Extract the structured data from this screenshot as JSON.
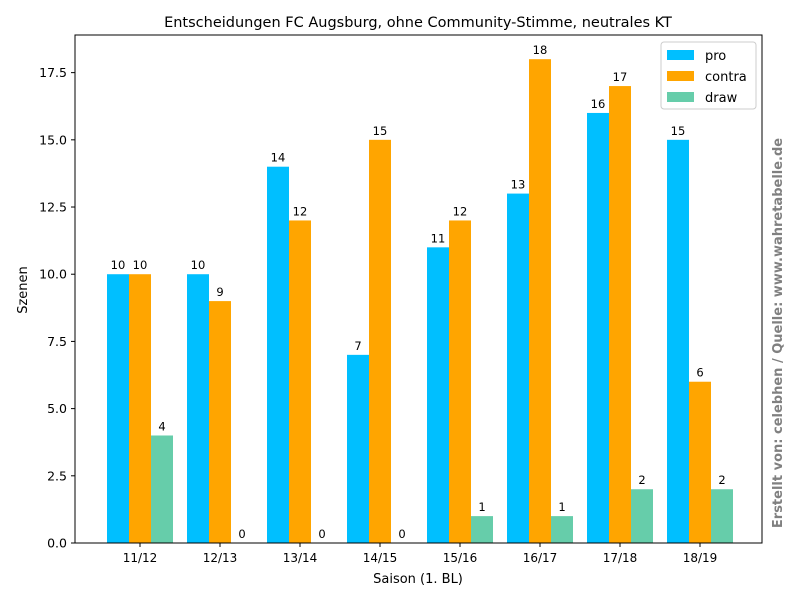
{
  "chart_data": {
    "type": "bar",
    "title": "Entscheidungen FC Augsburg, ohne Community-Stimme, neutrales KT",
    "xlabel": "Saison (1. BL)",
    "ylabel": "Szenen",
    "ylim": [
      0,
      18.9
    ],
    "yticks": [
      "0.0",
      "2.5",
      "5.0",
      "7.5",
      "10.0",
      "12.5",
      "15.0",
      "17.5"
    ],
    "categories": [
      "11/12",
      "12/13",
      "13/14",
      "14/15",
      "15/16",
      "16/17",
      "17/18",
      "18/19"
    ],
    "series": [
      {
        "name": "pro",
        "color": "#00bfff",
        "values": [
          10,
          10,
          14,
          7,
          11,
          13,
          16,
          15
        ]
      },
      {
        "name": "contra",
        "color": "#ffa500",
        "values": [
          10,
          9,
          12,
          15,
          12,
          18,
          17,
          6
        ]
      },
      {
        "name": "draw",
        "color": "#66cdaa",
        "values": [
          4,
          0,
          0,
          0,
          1,
          1,
          2,
          2
        ]
      }
    ],
    "legend_position": "top-right",
    "grid": false
  },
  "watermark": "Erstellt von: celebhen / Quelle: www.wahretabelle.de"
}
